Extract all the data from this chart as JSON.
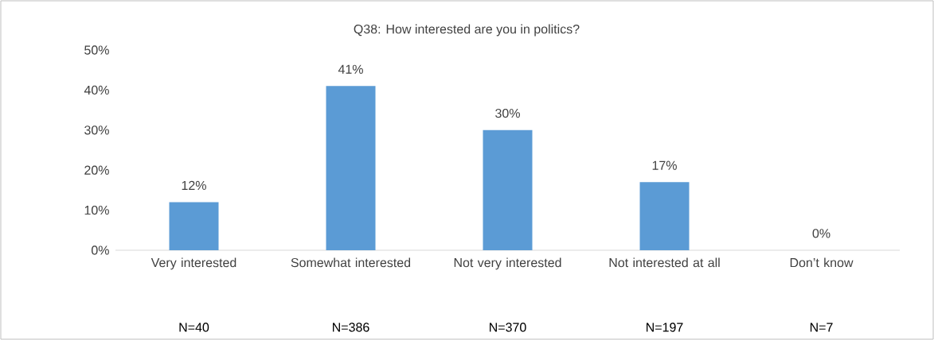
{
  "chart_data": {
    "type": "bar",
    "title": "Q38: How interested are you in politics?",
    "categories": [
      "Very interested",
      "Somewhat interested",
      "Not very interested",
      "Not interested at all",
      "Don’t know"
    ],
    "values": [
      12,
      41,
      30,
      17,
      0
    ],
    "value_labels": [
      "12%",
      "41%",
      "30%",
      "17%",
      "0%"
    ],
    "color": "#5b9bd5",
    "ylim": [
      0,
      50
    ],
    "yticks": [
      {
        "value": 0,
        "label": "0%"
      },
      {
        "value": 10,
        "label": "10%"
      },
      {
        "value": 20,
        "label": "20%"
      },
      {
        "value": 30,
        "label": "30%"
      },
      {
        "value": 40,
        "label": "40%"
      },
      {
        "value": 50,
        "label": "50%"
      }
    ],
    "annotations": [
      "N=40",
      "N=386",
      "N=370",
      "N=197",
      "N=7"
    ]
  }
}
